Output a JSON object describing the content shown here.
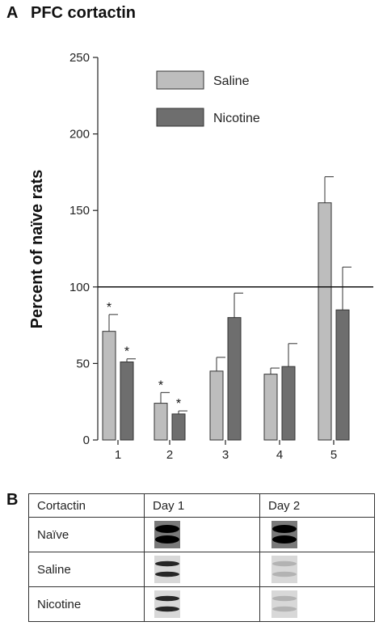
{
  "panel_a": {
    "letter": "A",
    "title": "PFC cortactin"
  },
  "chart_data": {
    "type": "bar",
    "title": "PFC cortactin",
    "xlabel": "",
    "ylabel": "Percent of naïve rats",
    "ylim": [
      0,
      250
    ],
    "yticks": [
      "0",
      "50",
      "100",
      "150",
      "200",
      "250"
    ],
    "categories": [
      "1",
      "2",
      "3",
      "4",
      "5"
    ],
    "reference_line": 100,
    "legend": {
      "placement": "top-right"
    },
    "series": [
      {
        "name": "Saline",
        "color": "#bdbdbd",
        "values": [
          71,
          24,
          45,
          43,
          155
        ],
        "errors": [
          11,
          7,
          9,
          4,
          17
        ],
        "significant": [
          true,
          true,
          false,
          false,
          false
        ]
      },
      {
        "name": "Nicotine",
        "color": "#6e6e6e",
        "values": [
          51,
          17,
          80,
          48,
          85
        ],
        "errors": [
          2,
          2,
          16,
          15,
          28
        ],
        "significant": [
          true,
          true,
          false,
          false,
          false
        ]
      }
    ],
    "significance_marker": "*"
  },
  "panel_b": {
    "letter": "B",
    "header": [
      "Cortactin",
      "Day 1",
      "Day 2"
    ],
    "rows": [
      {
        "label": "Naïve",
        "band_intensity": [
          1.0,
          1.0
        ]
      },
      {
        "label": "Saline",
        "band_intensity": [
          0.85,
          0.3
        ]
      },
      {
        "label": "Nicotine",
        "band_intensity": [
          0.85,
          0.3
        ]
      }
    ]
  }
}
